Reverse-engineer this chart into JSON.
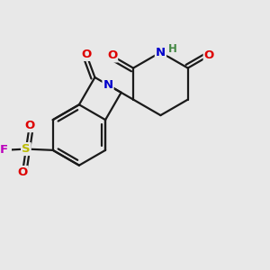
{
  "background_color": "#e8e8e8",
  "bond_color": "#1a1a1a",
  "bond_width": 1.6,
  "atom_colors": {
    "O": "#dd0000",
    "N": "#0000cc",
    "S": "#bbbb00",
    "F": "#bb00bb",
    "H": "#448844",
    "C": "#1a1a1a"
  },
  "font_size_atom": 9.5,
  "font_size_h": 8.5,
  "xlim": [
    -1.7,
    2.7
  ],
  "ylim": [
    -1.9,
    1.7
  ]
}
